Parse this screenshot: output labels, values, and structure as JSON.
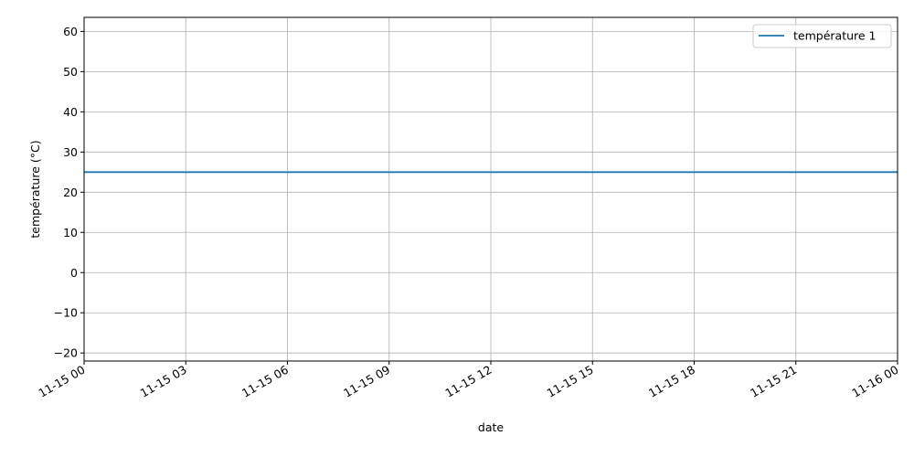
{
  "chart_data": {
    "type": "line",
    "x": [
      "11-15 00",
      "11-16 00"
    ],
    "xlabel": "date",
    "ylabel": "température (°C)",
    "x_ticks": [
      "11-15 00",
      "11-15 03",
      "11-15 06",
      "11-15 09",
      "11-15 12",
      "11-15 15",
      "11-15 18",
      "11-15 21",
      "11-16 00"
    ],
    "y_ticks": [
      -20,
      -10,
      0,
      10,
      20,
      30,
      40,
      50,
      60
    ],
    "ylim": [
      -22,
      63.5
    ],
    "grid": true,
    "legend_position": "top-right",
    "series": [
      {
        "name": "température 1",
        "color": "#1f77b4",
        "values": [
          25,
          25
        ]
      }
    ]
  }
}
